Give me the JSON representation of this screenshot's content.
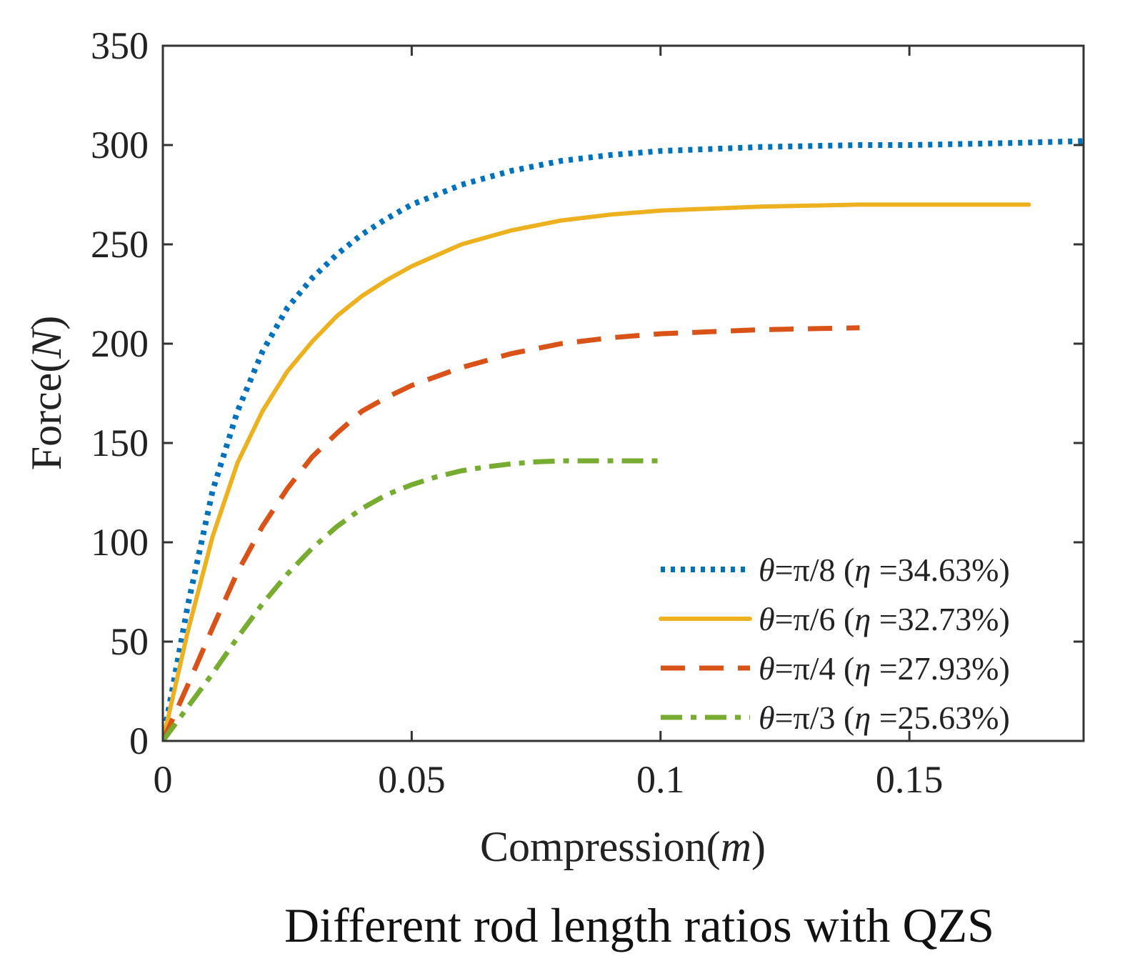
{
  "caption": "Different rod length ratios with QZS",
  "chart_data": {
    "type": "line",
    "title": "",
    "xlabel": "Compression(",
    "xlabel_unit": "m",
    "xlabel_close": ")",
    "ylabel": "Force(",
    "ylabel_unit": "N",
    "ylabel_close": ")",
    "xlim": [
      0,
      0.185
    ],
    "ylim": [
      0,
      350
    ],
    "xticks": [
      0,
      0.05,
      0.1,
      0.15
    ],
    "xtick_labels": [
      "0",
      "0.05",
      "0.1",
      "0.15"
    ],
    "yticks": [
      0,
      50,
      100,
      150,
      200,
      250,
      300,
      350
    ],
    "ytick_labels": [
      "0",
      "50",
      "100",
      "150",
      "200",
      "250",
      "300",
      "350"
    ],
    "grid": false,
    "legend_position": "bottom-right",
    "series": [
      {
        "name": "θ=π/8 (η =34.63%)",
        "legend_theta": "θ",
        "legend_eq": "=π/8 (",
        "legend_eta": "η",
        "legend_pct": " =34.63%)",
        "color": "#0072BD",
        "style": "dotted",
        "x": [
          0,
          0.005,
          0.01,
          0.015,
          0.02,
          0.025,
          0.03,
          0.035,
          0.04,
          0.045,
          0.05,
          0.06,
          0.07,
          0.08,
          0.09,
          0.1,
          0.11,
          0.12,
          0.13,
          0.14,
          0.15,
          0.16,
          0.17,
          0.185
        ],
        "y": [
          0,
          68,
          126,
          166,
          196,
          218,
          233,
          245,
          255,
          263,
          270,
          280,
          287,
          292,
          295,
          297,
          298,
          299,
          299.5,
          300,
          300,
          300.5,
          301,
          302
        ]
      },
      {
        "name": "θ=π/6 (η =32.73%)",
        "legend_theta": "θ",
        "legend_eq": "=π/6 (",
        "legend_eta": "η",
        "legend_pct": " =32.73%)",
        "color": "#EDB120",
        "style": "solid",
        "x": [
          0,
          0.005,
          0.01,
          0.015,
          0.02,
          0.025,
          0.03,
          0.035,
          0.04,
          0.045,
          0.05,
          0.06,
          0.07,
          0.08,
          0.09,
          0.1,
          0.11,
          0.12,
          0.13,
          0.14,
          0.15,
          0.16,
          0.174
        ],
        "y": [
          0,
          55,
          103,
          140,
          166,
          186,
          201,
          214,
          224,
          232,
          239,
          250,
          257,
          262,
          265,
          267,
          268,
          269,
          269.5,
          270,
          270,
          270,
          270
        ]
      },
      {
        "name": "θ=π/4 (η =27.93%)",
        "legend_theta": "θ",
        "legend_eq": "=π/4 (",
        "legend_eta": "η",
        "legend_pct": " =27.93%)",
        "color": "#D95319",
        "style": "dashed",
        "x": [
          0,
          0.005,
          0.01,
          0.015,
          0.02,
          0.025,
          0.03,
          0.035,
          0.04,
          0.045,
          0.05,
          0.06,
          0.07,
          0.08,
          0.09,
          0.1,
          0.11,
          0.12,
          0.13,
          0.14
        ],
        "y": [
          0,
          28,
          57,
          85,
          108,
          127,
          143,
          155,
          166,
          173,
          179,
          188,
          195,
          200,
          203,
          205,
          206,
          207,
          207.5,
          208
        ]
      },
      {
        "name": "θ=π/3 (η =25.63%)",
        "legend_theta": "θ",
        "legend_eq": "=π/3 (",
        "legend_eta": "η",
        "legend_pct": " =25.63%)",
        "color": "#77AC30",
        "style": "dashdot",
        "x": [
          0,
          0.005,
          0.01,
          0.015,
          0.02,
          0.025,
          0.03,
          0.035,
          0.04,
          0.045,
          0.05,
          0.055,
          0.06,
          0.065,
          0.07,
          0.075,
          0.08,
          0.085,
          0.09,
          0.095,
          0.1
        ],
        "y": [
          0,
          17,
          34,
          52,
          69,
          84,
          97,
          108,
          117,
          124,
          129,
          133,
          136,
          138,
          139.5,
          140.5,
          141,
          141,
          141,
          141,
          141
        ]
      }
    ]
  }
}
